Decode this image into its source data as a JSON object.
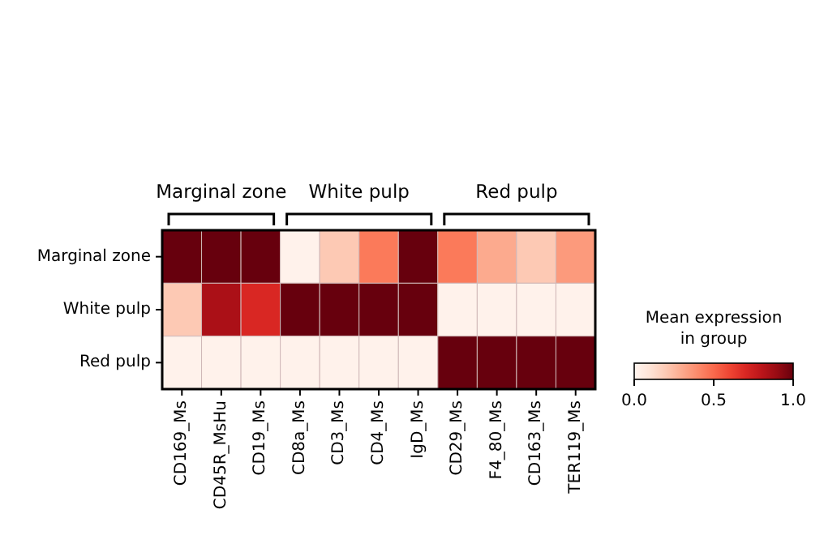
{
  "chart_data": {
    "type": "heatmap",
    "categories": [
      "CD169_Ms",
      "CD45R_MsHu",
      "CD19_Ms",
      "CD8a_Ms",
      "CD3_Ms",
      "CD4_Ms",
      "IgD_Ms",
      "CD29_Ms",
      "F4_80_Ms",
      "CD163_Ms",
      "TER119_Ms"
    ],
    "y_categories": [
      "Marginal zone",
      "White pulp",
      "Red pulp"
    ],
    "cells": [
      [
        1,
        1,
        1,
        0.02,
        0.2,
        0.45,
        1,
        0.45,
        0.3,
        0.2,
        0.35
      ],
      [
        0.2,
        0.85,
        0.7,
        1,
        1,
        1,
        1,
        0.02,
        0.02,
        0.02,
        0.02
      ],
      [
        0.02,
        0.02,
        0.02,
        0.02,
        0.02,
        0.02,
        0.02,
        1,
        1,
        1,
        1
      ]
    ],
    "clim": [
      0,
      1
    ],
    "cticks": [
      {
        "value": 0,
        "label": "0.0"
      },
      {
        "value": 0.5,
        "label": "0.5"
      },
      {
        "value": 1,
        "label": "1.0"
      }
    ],
    "clabel": "Mean expression\nin group",
    "annotations": [
      "Marginal zone",
      "White pulp",
      "Red pulp"
    ]
  }
}
